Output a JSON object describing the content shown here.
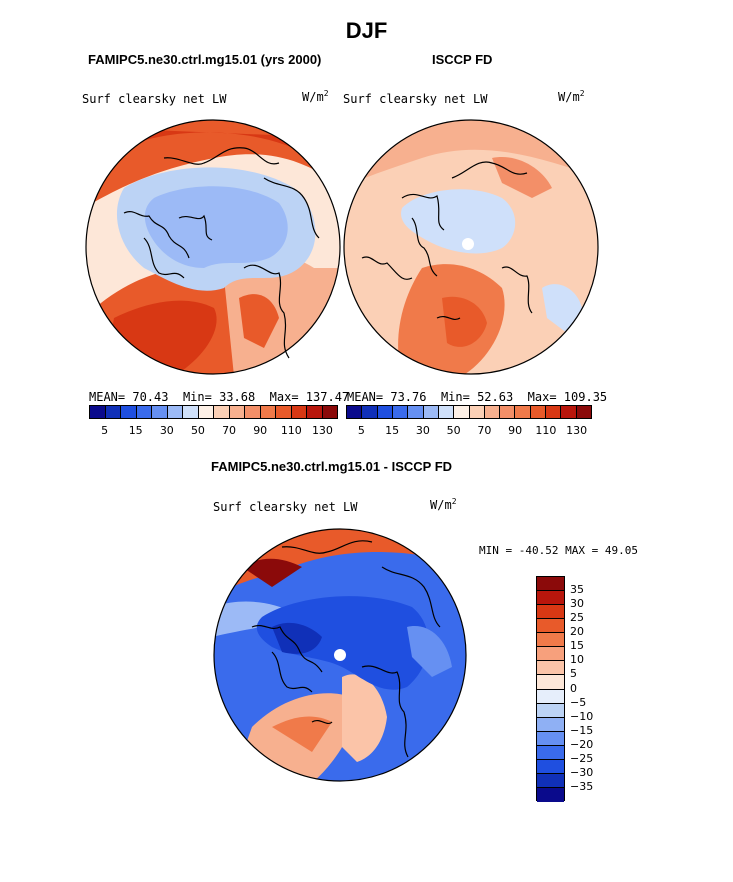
{
  "season": "DJF",
  "colors": {
    "deep_blue": "#0a0a8c",
    "blue": "#1f4fe0",
    "mid_blue": "#4a7bf0",
    "light_blue": "#bcd3f5",
    "very_light_blue": "#e6eefb",
    "cream": "#fde7d8",
    "light_orange": "#f7b08f",
    "orange": "#f07a4a",
    "red_orange": "#e0431c",
    "dark_red": "#8b0a0a",
    "coast": "#000000"
  },
  "panels": {
    "left": {
      "title": "FAMIPC5.ne30.ctrl.mg15.01 (yrs 2000)",
      "variable": "Surf clearsky net LW",
      "units_base": "W/m",
      "units_exp": "2",
      "mean_label": "MEAN=",
      "mean": "70.43",
      "min_label": "Min=",
      "min": "33.68",
      "max_label": "Max=",
      "max": "137.47"
    },
    "right": {
      "title": "ISCCP FD",
      "variable": "Surf clearsky net LW",
      "units_base": "W/m",
      "units_exp": "2",
      "mean_label": "MEAN=",
      "mean": "73.76",
      "min_label": "Min=",
      "min": "52.63",
      "max_label": "Max=",
      "max": "109.35"
    },
    "diff": {
      "title": "FAMIPC5.ne30.ctrl.mg15.01 - ISCCP FD",
      "variable": "Surf clearsky net LW",
      "units_base": "W/m",
      "units_exp": "2",
      "minmax_text": "MIN = -40.52 MAX =  49.05"
    }
  },
  "colorbar_top": {
    "colors": [
      "#0a0a8c",
      "#1030b8",
      "#1f4fe0",
      "#3a6bec",
      "#6690f2",
      "#9cbaf6",
      "#cfe0fa",
      "#fdf0e6",
      "#fbd0b6",
      "#f7b08f",
      "#f38f68",
      "#f07a4a",
      "#e85a2a",
      "#d83814",
      "#b8160c",
      "#8b0a0a"
    ],
    "labels": [
      "5",
      "15",
      "30",
      "50",
      "70",
      "90",
      "110",
      "130"
    ]
  },
  "colorbar_diff": {
    "colors": [
      "#8b0a0a",
      "#b8160c",
      "#d83814",
      "#e85a2a",
      "#f07a4a",
      "#f7a07c",
      "#fbc4a8",
      "#fde7d8",
      "#e6eefb",
      "#bcd3f5",
      "#8fb0f4",
      "#6690f2",
      "#3a6bec",
      "#1f4fe0",
      "#1030b8",
      "#0a0a8c"
    ],
    "labels": [
      "35",
      "30",
      "25",
      "20",
      "15",
      "10",
      "5",
      "0",
      "−5",
      "−10",
      "−15",
      "−20",
      "−25",
      "−30",
      "−35"
    ]
  }
}
